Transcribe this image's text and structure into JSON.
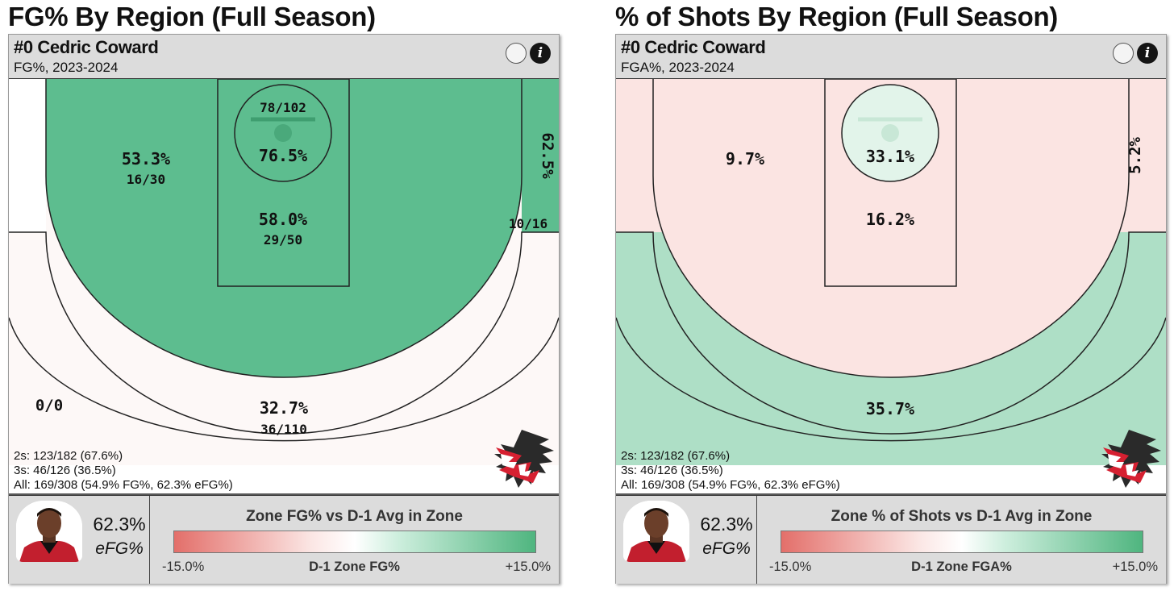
{
  "chart_data": [
    {
      "type": "heatmap",
      "title": "FG% By Region (Full Season)",
      "player": "#0 Cedric Coward",
      "subtitle": "FG%, 2023-2024",
      "zones": [
        {
          "zone": "left-corner-3",
          "pct": "0/0",
          "made_attempts": ""
        },
        {
          "zone": "left-midrange",
          "pct": "53.3%",
          "made_attempts": "16/30"
        },
        {
          "zone": "rim",
          "pct": "76.5%",
          "made_attempts": "78/102"
        },
        {
          "zone": "paint",
          "pct": "58.0%",
          "made_attempts": "29/50"
        },
        {
          "zone": "right-corner-3",
          "pct": "62.5%",
          "made_attempts": "10/16"
        },
        {
          "zone": "above-break-3",
          "pct": "32.7%",
          "made_attempts": "36/110"
        }
      ],
      "summary": [
        "2s: 123/182 (67.6%)",
        "3s: 46/126 (36.5%)",
        "All: 169/308 (54.9% FG%, 62.3% eFG%)"
      ],
      "efg_value": "62.3%",
      "efg_label": "eFG%",
      "legend": {
        "title": "Zone FG% vs D-1 Avg in Zone",
        "min": "-15.0%",
        "max": "+15.0%",
        "label": "D-1 Zone FG%"
      }
    },
    {
      "type": "heatmap",
      "title": "% of Shots By Region (Full Season)",
      "player": "#0 Cedric Coward",
      "subtitle": "FGA%, 2023-2024",
      "zones": [
        {
          "zone": "left-midrange",
          "pct": "9.7%"
        },
        {
          "zone": "rim",
          "pct": "33.1%"
        },
        {
          "zone": "paint",
          "pct": "16.2%"
        },
        {
          "zone": "right-corner-3",
          "pct": "5.2%"
        },
        {
          "zone": "above-break-3",
          "pct": "35.7%"
        }
      ],
      "summary": [
        "2s: 123/182 (67.6%)",
        "3s: 46/126 (36.5%)",
        "All: 169/308 (54.9% FG%, 62.3% eFG%)"
      ],
      "efg_value": "62.3%",
      "efg_label": "eFG%",
      "legend": {
        "title": "Zone % of Shots vs D-1 Avg in Zone",
        "min": "-15.0%",
        "max": "+15.0%",
        "label": "D-1 Zone FGA%"
      }
    }
  ],
  "colors": {
    "green": "#5dbd8f",
    "light_green": "#aedfc6",
    "pale_green": "#e2f4ea",
    "light_pink": "#fbe4e2",
    "pale_pink": "#fdf8f7",
    "white": "#ffffff",
    "team_red": "#d62031"
  },
  "icons": [
    "info-icon",
    "toggle-circle-icon",
    "eagle-logo-icon",
    "player-headshot"
  ]
}
